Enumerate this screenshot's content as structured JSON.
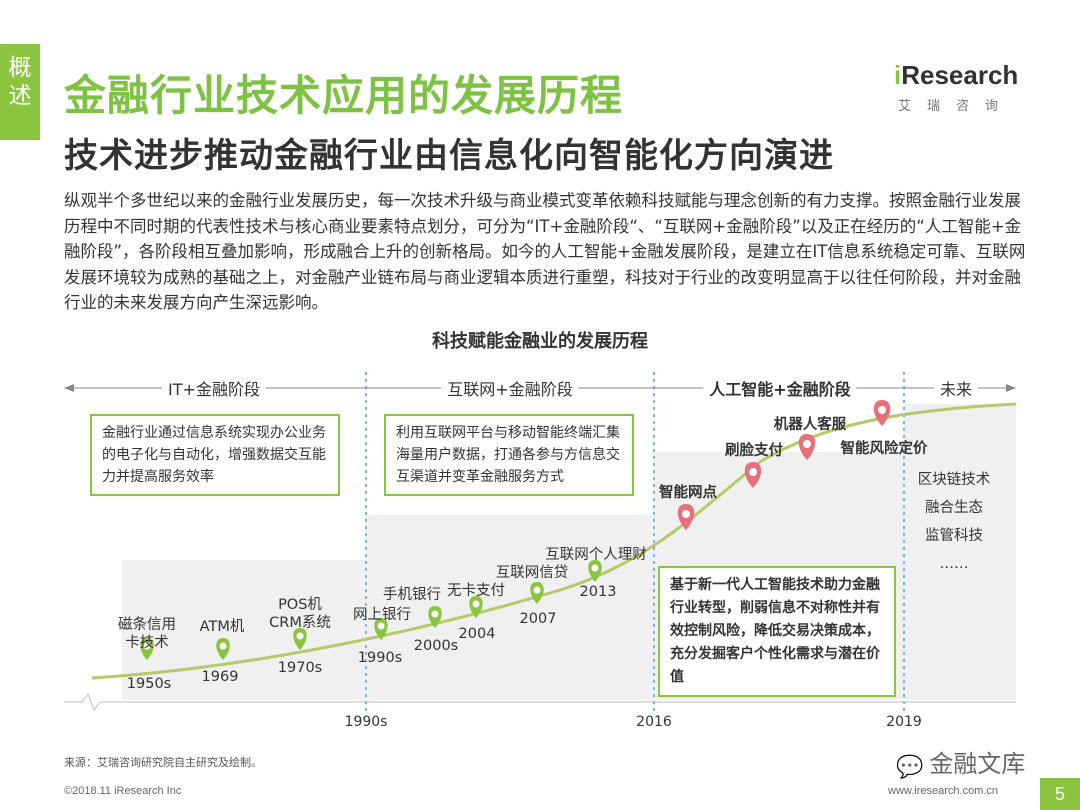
{
  "side_tab": [
    "概",
    "述"
  ],
  "main_title": "金融行业技术应用的发展历程",
  "sub_title": "技术进步推动金融行业由信息化向智能化方向演进",
  "logo": {
    "brand": "iResearch",
    "brand_accent": "i",
    "brand_rest": "Research",
    "cn": "艾瑞咨询"
  },
  "intro": "纵观半个多世纪以来的金融行业发展历史，每一次技术升级与商业模式变革依赖科技赋能与理念创新的有力支撑。按照金融行业发展历程中不同时期的代表性技术与核心商业要素特点划分，可分为“IT+金融阶段“、“互联网+金融阶段”以及正在经历的“人工智能+金融阶段”，各阶段相互叠加影响，形成融合上升的创新格局。如今的人工智能+金融发展阶段，是建立在IT信息系统稳定可靠、互联网发展环境较为成熟的基础之上，对金融产业链布局与商业逻辑本质进行重塑，科技对于行业的改变明显高于以往任何阶段，并对金融行业的未来发展方向产生深远影响。",
  "diagram_title": "科技赋能金融业的发展历程",
  "stages": [
    {
      "label": "IT+金融阶段",
      "bold": false
    },
    {
      "label": "互联网+金融阶段",
      "bold": false
    },
    {
      "label": "人工智能+金融阶段",
      "bold": true
    },
    {
      "label": "未来",
      "bold": false
    }
  ],
  "callouts": {
    "it": "金融行业通过信息系统实现办公业务的电子化与自动化，增强数据交互能力并提高服务效率",
    "internet": "利用互联网平台与移动智能终端汇集海量用户数据，打通各参与方信息交互渠道并变革金融服务方式",
    "ai": "基于新一代人工智能技术助力金融行业转型，削弱信息不对称性并有效控制风险，降低交易决策成本，充分发掘客户个性化需求与潜在价值"
  },
  "future_items": [
    "区块链技术",
    "融合生态",
    "监管科技",
    "……"
  ],
  "axis_labels": [
    "1990s",
    "2016",
    "2019"
  ],
  "events": [
    {
      "label": "磁条信用\n卡技术",
      "year": "1950s"
    },
    {
      "label": "ATM机",
      "year": "1969"
    },
    {
      "label": "POS机\nCRM系统",
      "year": "1970s"
    },
    {
      "label": "网上银行",
      "year": "1990s"
    },
    {
      "label": "手机银行",
      "year": "2000s"
    },
    {
      "label": "无卡支付",
      "year": "2004"
    },
    {
      "label": "互联网信贷",
      "year": "2007"
    },
    {
      "label": "互联网个人理财",
      "year": "2013"
    },
    {
      "label": "智能网点",
      "year": ""
    },
    {
      "label": "刷脸支付",
      "year": ""
    },
    {
      "label": "机器人客服",
      "year": ""
    },
    {
      "label": "智能风险定价",
      "year": ""
    }
  ],
  "colors": {
    "accent": "#8bc53f",
    "divider": "#4aa3df",
    "marker_ai": "#e8707a"
  },
  "source": "来源：艾瑞咨询研究院自主研究及绘制。",
  "copyright": "©2018.11 iResearch Inc",
  "site": "www.iresearch.com.cn",
  "page_number": "5",
  "watermark": "金融文库"
}
